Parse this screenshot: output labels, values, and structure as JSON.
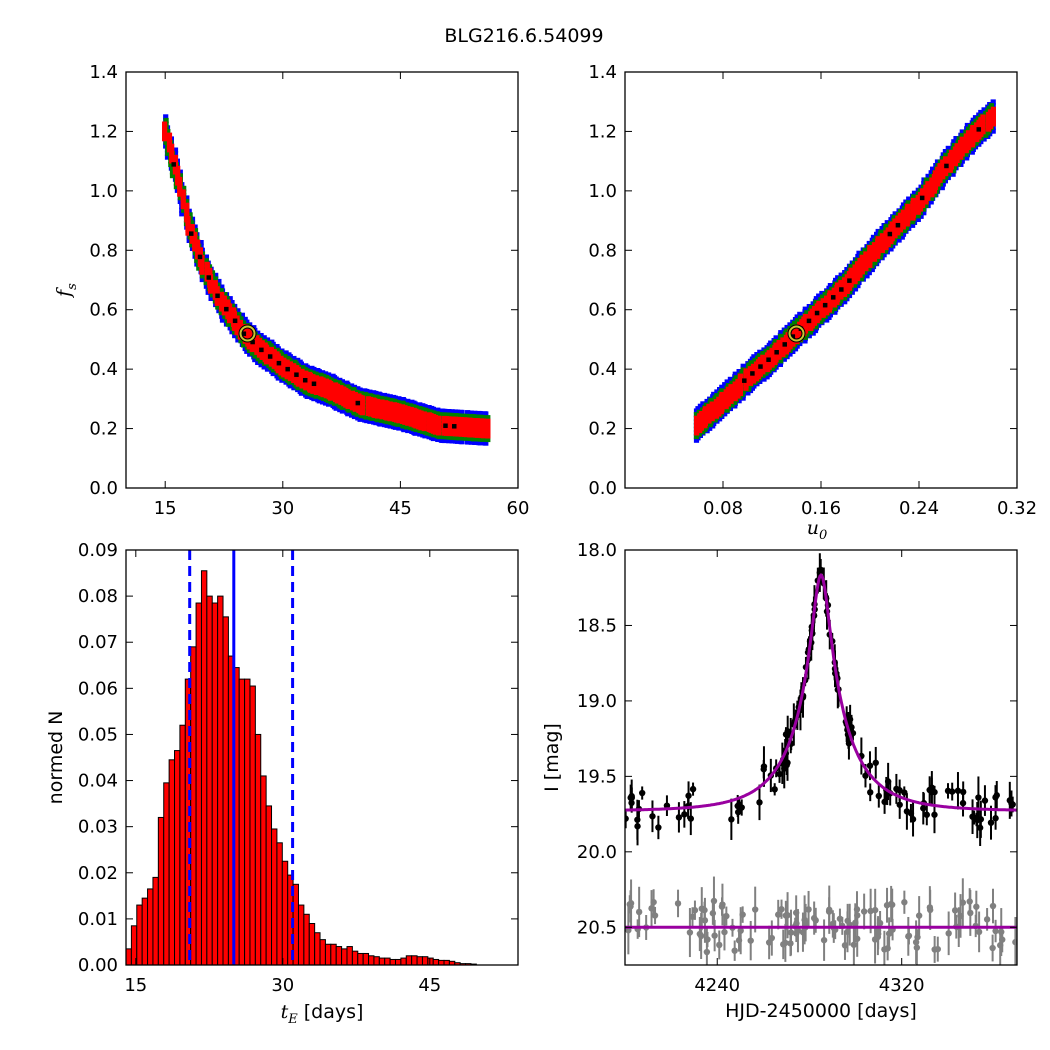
{
  "chart_data": {
    "title": "BLG216.6.54099",
    "panels": [
      {
        "id": "fs_vs_tE",
        "type": "heatmap",
        "xlim": [
          10,
          60
        ],
        "ylim": [
          0,
          1.4
        ],
        "xticks": [
          "15",
          "30",
          "45",
          "60"
        ],
        "yticks": [
          "0.0",
          "0.2",
          "0.4",
          "0.6",
          "0.8",
          "1.0",
          "1.2",
          "1.4"
        ],
        "xlabel": "",
        "ylabel": "f_s",
        "ylabel_main": "f",
        "ylabel_sub": "s",
        "levels": {
          "blue": "#0000ff",
          "green": "#008000",
          "red": "#ff0000",
          "black": "#000000"
        },
        "curve_points": [
          [
            15,
            1.2
          ],
          [
            16,
            1.1
          ],
          [
            17,
            1.0
          ],
          [
            18,
            0.88
          ],
          [
            20,
            0.74
          ],
          [
            22,
            0.63
          ],
          [
            24,
            0.56
          ],
          [
            25,
            0.52
          ],
          [
            27,
            0.47
          ],
          [
            30,
            0.41
          ],
          [
            33,
            0.36
          ],
          [
            36,
            0.33
          ],
          [
            40,
            0.28
          ],
          [
            45,
            0.25
          ],
          [
            50,
            0.21
          ],
          [
            56,
            0.2
          ]
        ],
        "best_fit": {
          "x": 25.5,
          "y": 0.52
        }
      },
      {
        "id": "fs_vs_u0",
        "type": "heatmap",
        "xlim": [
          0,
          0.32
        ],
        "ylim": [
          0,
          1.4
        ],
        "xticks": [
          "0.08",
          "0.16",
          "0.24",
          "0.32"
        ],
        "yticks": [
          "0.0",
          "0.2",
          "0.4",
          "0.6",
          "0.8",
          "1.0",
          "1.2",
          "1.4"
        ],
        "xlabel": "u_0",
        "xlabel_main": "u",
        "xlabel_sub": "0",
        "ylabel": "",
        "curve_points": [
          [
            0.058,
            0.21
          ],
          [
            0.08,
            0.29
          ],
          [
            0.1,
            0.37
          ],
          [
            0.12,
            0.44
          ],
          [
            0.14,
            0.52
          ],
          [
            0.16,
            0.6
          ],
          [
            0.18,
            0.68
          ],
          [
            0.2,
            0.78
          ],
          [
            0.22,
            0.87
          ],
          [
            0.24,
            0.96
          ],
          [
            0.26,
            1.07
          ],
          [
            0.28,
            1.17
          ],
          [
            0.3,
            1.25
          ]
        ],
        "best_fit": {
          "x": 0.14,
          "y": 0.52
        }
      },
      {
        "id": "tE_histogram",
        "type": "bar",
        "xlim": [
          14,
          54
        ],
        "ylim": [
          0,
          0.09
        ],
        "xticks": [
          "15",
          "30",
          "45"
        ],
        "yticks": [
          "0.00",
          "0.01",
          "0.02",
          "0.03",
          "0.04",
          "0.05",
          "0.06",
          "0.07",
          "0.08",
          "0.09"
        ],
        "xlabel_main": "t",
        "xlabel_sub": "E",
        "xlabel_rest": " [days]",
        "ylabel": "normed N",
        "bin_width": 0.55,
        "bin_start": 14.0,
        "values": [
          0.0035,
          0.0085,
          0.013,
          0.0145,
          0.0165,
          0.019,
          0.032,
          0.0395,
          0.0445,
          0.0465,
          0.052,
          0.062,
          0.069,
          0.0785,
          0.0855,
          0.08,
          0.0785,
          0.08,
          0.0755,
          0.067,
          0.0645,
          0.062,
          0.062,
          0.0605,
          0.05,
          0.041,
          0.0345,
          0.0295,
          0.0265,
          0.0225,
          0.0195,
          0.0175,
          0.013,
          0.011,
          0.009,
          0.007,
          0.0055,
          0.0045,
          0.0045,
          0.004,
          0.0035,
          0.004,
          0.003,
          0.0025,
          0.0025,
          0.002,
          0.0018,
          0.0015,
          0.0015,
          0.0012,
          0.0012,
          0.0015,
          0.002,
          0.002,
          0.0018,
          0.0018,
          0.0015,
          0.0012,
          0.001,
          0.001,
          0.0008,
          0.0005,
          0.0003,
          0.0003,
          0.0002
        ],
        "bar_color": "#ff0000",
        "median": 25.0,
        "bounds": [
          20.5,
          31.0
        ],
        "line_color": "#0000ff"
      },
      {
        "id": "light_curve",
        "type": "scatter",
        "xlim": [
          4200,
          4370
        ],
        "ylim": [
          20.75,
          18.0
        ],
        "xticks": [
          "4240",
          "4320"
        ],
        "yticks": [
          "18.0",
          "18.5",
          "19.0",
          "19.5",
          "20.0",
          "20.5"
        ],
        "xlabel": "HJD-2450000 [days]",
        "ylabel": "I [mag]",
        "model_color": "#9900a0",
        "data_color": "#000000",
        "residual_color": "#808080",
        "model": {
          "t0": 4285,
          "u0": 0.14,
          "tE": 25.5,
          "fs": 0.52,
          "baseline": 19.73
        },
        "residual_baseline": 20.5
      }
    ]
  }
}
